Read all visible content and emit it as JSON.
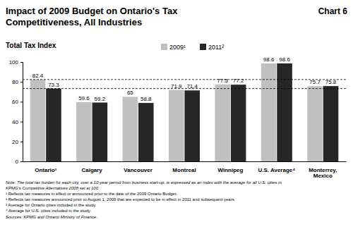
{
  "chart_data": {
    "type": "bar",
    "title": "Impact of 2009 Budget on Ontario's Tax Competitiveness, All Industries",
    "annotation": "Chart 6",
    "subtitle": "Total Tax Index",
    "categories": [
      "Ontario³",
      "Calgary",
      "Vancouver",
      "Montreal",
      "Winnipeg",
      "U.S. Average⁴",
      "Monterrey, Mexico"
    ],
    "series": [
      {
        "name": "2009¹",
        "color": "#c0c0c0",
        "values": [
          82.4,
          59.6,
          65,
          71.9,
          77.5,
          98.6,
          75.7
        ]
      },
      {
        "name": "2011²",
        "color": "#262626",
        "values": [
          73.3,
          59.2,
          58.8,
          71.4,
          77.2,
          98.6,
          75.8
        ]
      }
    ],
    "reference_lines": [
      82.4,
      73.3
    ],
    "ylim": [
      0,
      100
    ],
    "yticks": [
      0,
      20,
      40,
      60,
      80,
      100
    ],
    "grid": false,
    "data_labels": true,
    "legend": "top",
    "notes": [
      "Note: The total tax burden for each city, over a 10-year period from business start-up, is expressed as an index with the average for all U.S. cities in",
      "KPMG's Competitive Alternatives 2008 set at 100.",
      "¹ Reflects tax measures in effect or announced prior to the date of the 2009 Ontario Budget.",
      "² Reflects tax measures announced prior to August 1, 2009 that are expected to be in effect in 2011 and subsequent years.",
      "³ Average for Ontario cities included in the study.",
      "⁴ Average for U.S. cities included in the study."
    ],
    "source": "Sources: KPMG and Ontario Ministry of Finance."
  }
}
